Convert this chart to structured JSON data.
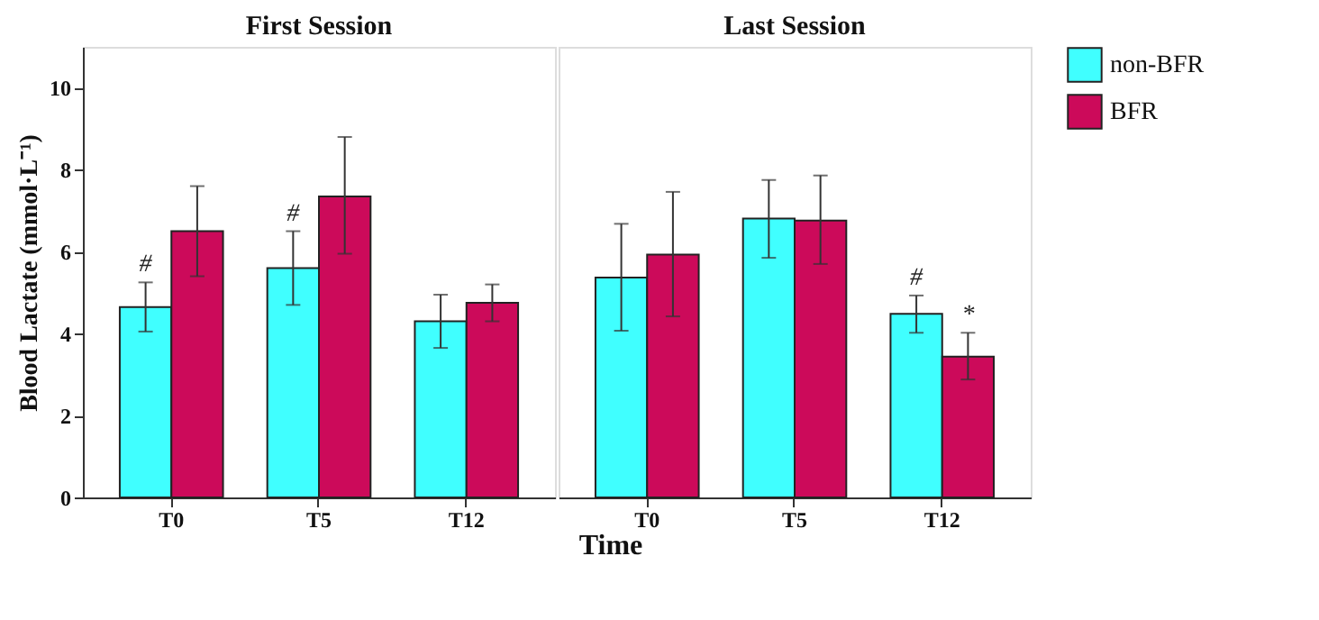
{
  "chart_data": [
    {
      "type": "bar",
      "title": "First Session",
      "xlabel": "Time",
      "ylabel": "Blood Lactate (mmol·L⁻¹)",
      "categories": [
        "T0",
        "T5",
        "T12"
      ],
      "ylim": [
        0,
        11
      ],
      "yticks": [
        0,
        2,
        4,
        6,
        8,
        10
      ],
      "grid": false,
      "legend": false,
      "series": [
        {
          "color": "#40ffff",
          "values": [
            4.65,
            5.6,
            4.3
          ],
          "errors": [
            [
              4.05,
              5.25
            ],
            [
              4.7,
              6.5
            ],
            [
              3.65,
              4.95
            ]
          ]
        },
        {
          "color": "#cc0a5a",
          "values": [
            6.5,
            7.35,
            4.75
          ],
          "errors": [
            [
              5.4,
              7.6
            ],
            [
              5.95,
              8.8
            ],
            [
              4.3,
              5.2
            ]
          ]
        }
      ],
      "annotations": [
        {
          "text": "#",
          "x": "T0",
          "y": 4.65
        },
        {
          "text": "#",
          "x": "T5",
          "y": 5.6
        }
      ]
    },
    {
      "type": "bar",
      "title": "Last Session",
      "categories": [
        "T0",
        "T5",
        "T12"
      ],
      "ylim": [
        0,
        11
      ],
      "tick_labels": "x",
      "grid": false,
      "legend": "right",
      "series": [
        {
          "name": "non-BFR",
          "color": "#40ffff",
          "values": [
            5.37,
            6.81,
            4.48
          ],
          "errors": [
            [
              4.07,
              6.68
            ],
            [
              5.85,
              7.75
            ],
            [
              4.02,
              4.93
            ]
          ]
        },
        {
          "name": "BFR",
          "color": "#cc0a5a",
          "values": [
            5.93,
            6.76,
            3.44
          ],
          "errors": [
            [
              4.42,
              7.46
            ],
            [
              5.7,
              7.86
            ],
            [
              2.88,
              4.02
            ]
          ]
        }
      ],
      "annotations": [
        {
          "text": "#",
          "x": "T12",
          "y": 4.48
        },
        {
          "text": "*",
          "x": "T12",
          "y": 3.44
        }
      ]
    }
  ]
}
